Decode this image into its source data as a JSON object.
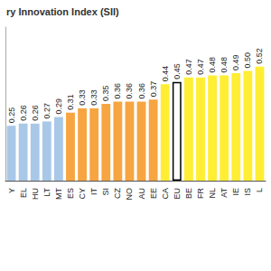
{
  "chart_data": {
    "type": "bar",
    "title": "ry Innovation Index (SII)",
    "categories": [
      "Y",
      "EL",
      "HU",
      "LT",
      "MT",
      "ES",
      "CY",
      "IT",
      "SI",
      "CZ",
      "NO",
      "AU",
      "EE",
      "CA",
      "EU",
      "BE",
      "FR",
      "NL",
      "AT",
      "IE",
      "IS",
      "L"
    ],
    "values": [
      0.25,
      0.26,
      0.26,
      0.27,
      0.29,
      0.31,
      0.33,
      0.33,
      0.35,
      0.36,
      0.36,
      0.36,
      0.37,
      0.44,
      0.45,
      0.47,
      0.47,
      0.48,
      0.48,
      0.49,
      0.5,
      0.52
    ],
    "value_labels": [
      "0.25",
      "0.26",
      "0.26",
      "0.27",
      "0.29",
      "0.31",
      "0.33",
      "0.33",
      "0.35",
      "0.36",
      "0.36",
      "0.36",
      "0.37",
      "0.44",
      "0.45",
      "0.47",
      "0.47",
      "0.48",
      "0.48",
      "0.49",
      "0.50",
      "0.52"
    ],
    "colors": [
      "#a9c8e8",
      "#a9c8e8",
      "#a9c8e8",
      "#a9c8e8",
      "#a9c8e8",
      "#f7a541",
      "#f7a541",
      "#f7a541",
      "#f7a541",
      "#f7a541",
      "#f7a541",
      "#f7a541",
      "#f7a541",
      "#ffee33",
      "#ffffff",
      "#ffee33",
      "#ffee33",
      "#ffee33",
      "#ffee33",
      "#ffee33",
      "#ffee33",
      "#ffee33"
    ],
    "ylim": [
      0,
      0.7
    ],
    "grid": false,
    "data_labels": true,
    "tick_labels": "x"
  }
}
